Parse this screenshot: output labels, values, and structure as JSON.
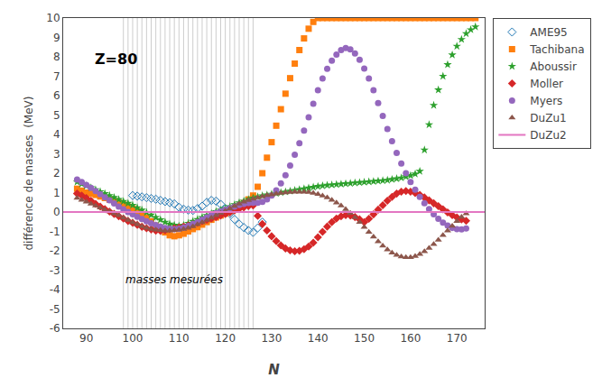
{
  "chart_data": {
    "type": "scatter",
    "title": "Z=80",
    "xlabel": "N",
    "ylabel": "différence de masses  (MeV)",
    "xlim": [
      85,
      176
    ],
    "ylim": [
      -6,
      10
    ],
    "xticks": [
      90,
      100,
      110,
      120,
      130,
      140,
      150,
      160,
      170
    ],
    "yticks": [
      -6,
      -5,
      -4,
      -3,
      -2,
      -1,
      0,
      1,
      2,
      3,
      4,
      5,
      6,
      7,
      8,
      9,
      10
    ],
    "grid": false,
    "legend": "right",
    "vlines": [
      98,
      99,
      100,
      101,
      102,
      103,
      104,
      105,
      106,
      107,
      108,
      109,
      110,
      111,
      112,
      113,
      114,
      115,
      116,
      117,
      118,
      119,
      120,
      121,
      122,
      123,
      124,
      125,
      126
    ],
    "annotations": [
      {
        "text": "masses mesurées",
        "x": 109,
        "y": -3.5
      }
    ],
    "series": [
      {
        "name": "AME95",
        "marker": "diamond-open",
        "x": [
          100,
          101,
          102,
          103,
          104,
          105,
          106,
          107,
          108,
          109,
          110,
          111,
          112,
          113,
          114,
          115,
          116,
          117,
          118,
          119,
          120,
          121,
          122,
          123,
          124,
          125,
          126,
          127,
          128
        ],
        "values": [
          0.85,
          0.82,
          0.78,
          0.74,
          0.7,
          0.66,
          0.6,
          0.54,
          0.48,
          0.42,
          0.25,
          0.15,
          0.1,
          0.08,
          0.18,
          0.3,
          0.5,
          0.6,
          0.56,
          0.4,
          0.18,
          -0.08,
          -0.38,
          -0.62,
          -0.8,
          -0.95,
          -1.05,
          -0.82,
          -0.52
        ]
      },
      {
        "name": "Tachibana",
        "marker": "square",
        "x": [
          88,
          89,
          90,
          91,
          92,
          93,
          94,
          95,
          96,
          97,
          98,
          99,
          100,
          101,
          102,
          103,
          104,
          105,
          106,
          107,
          108,
          109,
          110,
          111,
          112,
          113,
          114,
          115,
          116,
          117,
          118,
          119,
          120,
          121,
          122,
          123,
          124,
          125,
          126,
          127,
          128,
          129,
          130,
          131,
          132,
          133,
          134,
          135,
          136,
          137,
          138,
          139,
          140,
          141,
          142,
          143,
          144,
          145,
          146,
          147,
          148,
          149,
          150,
          151,
          152,
          153,
          154,
          155,
          156,
          157,
          158,
          159,
          160,
          161,
          162,
          163,
          164,
          165,
          166,
          167,
          168,
          169,
          170,
          171,
          172,
          173,
          174
        ],
        "values": [
          1.2,
          1.1,
          1.0,
          0.95,
          0.88,
          0.8,
          0.72,
          0.64,
          0.56,
          0.48,
          0.38,
          0.28,
          0.18,
          0.05,
          -0.1,
          -0.28,
          -0.48,
          -0.7,
          -0.88,
          -1.05,
          -1.2,
          -1.25,
          -1.2,
          -1.12,
          -1.0,
          -0.88,
          -0.78,
          -0.65,
          -0.52,
          -0.4,
          -0.28,
          -0.18,
          -0.08,
          0.05,
          0.18,
          0.32,
          0.46,
          0.65,
          0.85,
          1.3,
          2.0,
          2.8,
          3.6,
          4.45,
          5.3,
          6.1,
          6.9,
          7.65,
          8.35,
          8.95,
          9.45,
          9.8,
          10.0,
          10.0,
          10.0,
          10.0,
          10.0,
          10.0,
          10.0,
          10.0,
          10.0,
          10.0,
          10.0,
          10.0,
          10.0,
          10.0,
          10.0,
          10.0,
          10.0,
          10.0,
          10.0,
          10.0,
          10.0,
          10.0,
          10.0,
          10.0,
          10.0,
          10.0,
          10.0,
          10.0,
          10.0,
          10.0,
          10.0,
          10.0,
          10.0,
          10.0,
          10.0
        ]
      },
      {
        "name": "Aboussir",
        "marker": "star",
        "x": [
          88,
          89,
          90,
          91,
          92,
          93,
          94,
          95,
          96,
          97,
          98,
          99,
          100,
          101,
          102,
          103,
          104,
          105,
          106,
          107,
          108,
          109,
          110,
          111,
          112,
          113,
          114,
          115,
          116,
          117,
          118,
          119,
          120,
          121,
          122,
          123,
          124,
          125,
          126,
          127,
          128,
          129,
          130,
          131,
          132,
          133,
          134,
          135,
          136,
          137,
          138,
          139,
          140,
          141,
          142,
          143,
          144,
          145,
          146,
          147,
          148,
          149,
          150,
          151,
          152,
          153,
          154,
          155,
          156,
          157,
          158,
          159,
          160,
          161,
          162,
          163,
          164,
          165,
          166,
          167,
          168,
          169,
          170,
          171,
          172,
          173,
          174
        ],
        "values": [
          1.55,
          1.45,
          1.35,
          1.25,
          1.15,
          1.05,
          0.95,
          0.85,
          0.75,
          0.65,
          0.55,
          0.45,
          0.35,
          0.22,
          0.1,
          -0.02,
          -0.15,
          -0.28,
          -0.4,
          -0.52,
          -0.62,
          -0.68,
          -0.72,
          -0.68,
          -0.58,
          -0.48,
          -0.38,
          -0.28,
          -0.18,
          -0.08,
          0.02,
          0.1,
          0.18,
          0.28,
          0.38,
          0.48,
          0.56,
          0.65,
          0.72,
          0.78,
          0.84,
          0.88,
          0.92,
          0.96,
          1.0,
          1.04,
          1.08,
          1.12,
          1.16,
          1.2,
          1.24,
          1.28,
          1.32,
          1.35,
          1.38,
          1.4,
          1.42,
          1.44,
          1.46,
          1.48,
          1.5,
          1.52,
          1.54,
          1.56,
          1.58,
          1.6,
          1.62,
          1.64,
          1.68,
          1.72,
          1.76,
          1.82,
          1.88,
          1.96,
          2.1,
          3.2,
          4.5,
          5.5,
          6.3,
          7.0,
          7.6,
          8.1,
          8.55,
          8.9,
          9.2,
          9.4,
          9.55
        ]
      },
      {
        "name": "Moller",
        "marker": "diamond",
        "x": [
          88,
          89,
          90,
          91,
          92,
          93,
          94,
          95,
          96,
          97,
          98,
          99,
          100,
          101,
          102,
          103,
          104,
          105,
          106,
          107,
          108,
          109,
          110,
          111,
          112,
          113,
          114,
          115,
          116,
          117,
          118,
          119,
          120,
          121,
          122,
          123,
          124,
          125,
          126,
          127,
          128,
          129,
          130,
          131,
          132,
          133,
          134,
          135,
          136,
          137,
          138,
          139,
          140,
          141,
          142,
          143,
          144,
          145,
          146,
          147,
          148,
          149,
          150,
          151,
          152,
          153,
          154,
          155,
          156,
          157,
          158,
          159,
          160,
          161,
          162,
          163,
          164,
          165,
          166,
          167,
          168,
          169,
          170,
          171,
          172
        ],
        "values": [
          0.95,
          0.85,
          0.72,
          0.58,
          0.42,
          0.28,
          0.15,
          0.02,
          -0.1,
          -0.22,
          -0.34,
          -0.46,
          -0.56,
          -0.66,
          -0.76,
          -0.84,
          -0.9,
          -0.96,
          -0.98,
          -0.94,
          -0.88,
          -0.84,
          -0.8,
          -0.76,
          -0.7,
          -0.64,
          -0.56,
          -0.48,
          -0.4,
          -0.34,
          -0.26,
          -0.18,
          -0.1,
          -0.02,
          0.08,
          0.16,
          0.24,
          0.3,
          0.34,
          -0.2,
          -0.62,
          -0.95,
          -1.25,
          -1.5,
          -1.72,
          -1.88,
          -1.98,
          -2.02,
          -2.0,
          -1.92,
          -1.78,
          -1.58,
          -1.3,
          -1.02,
          -0.75,
          -0.52,
          -0.34,
          -0.22,
          -0.16,
          -0.18,
          -0.26,
          -0.38,
          -0.52,
          -0.35,
          -0.12,
          0.12,
          0.35,
          0.58,
          0.78,
          0.95,
          1.05,
          1.08,
          1.05,
          0.98,
          0.88,
          0.75,
          0.6,
          0.45,
          0.3,
          0.14,
          -0.02,
          -0.16,
          -0.28,
          -0.38,
          -0.45
        ]
      },
      {
        "name": "Myers",
        "marker": "circle",
        "x": [
          88,
          89,
          90,
          91,
          92,
          93,
          94,
          95,
          96,
          97,
          98,
          99,
          100,
          101,
          102,
          103,
          104,
          105,
          106,
          107,
          108,
          109,
          110,
          111,
          112,
          113,
          114,
          115,
          116,
          117,
          118,
          119,
          120,
          121,
          122,
          123,
          124,
          125,
          126,
          127,
          128,
          129,
          130,
          131,
          132,
          133,
          134,
          135,
          136,
          137,
          138,
          139,
          140,
          141,
          142,
          143,
          144,
          145,
          146,
          147,
          148,
          149,
          150,
          151,
          152,
          153,
          154,
          155,
          156,
          157,
          158,
          159,
          160,
          161,
          162,
          163,
          164,
          165,
          166,
          167,
          168,
          169,
          170,
          171,
          172
        ],
        "values": [
          1.68,
          1.55,
          1.4,
          1.24,
          1.08,
          0.92,
          0.76,
          0.6,
          0.44,
          0.28,
          0.14,
          0.0,
          -0.12,
          -0.24,
          -0.36,
          -0.48,
          -0.58,
          -0.68,
          -0.76,
          -0.82,
          -0.86,
          -0.88,
          -0.86,
          -0.8,
          -0.72,
          -0.62,
          -0.52,
          -0.4,
          -0.28,
          -0.16,
          -0.06,
          0.04,
          0.12,
          0.2,
          0.28,
          0.36,
          0.42,
          0.46,
          0.48,
          0.48,
          0.52,
          0.65,
          0.85,
          1.12,
          1.48,
          1.9,
          2.4,
          2.95,
          3.55,
          4.2,
          4.88,
          5.58,
          6.28,
          6.88,
          7.38,
          7.8,
          8.12,
          8.35,
          8.45,
          8.38,
          8.18,
          7.85,
          7.4,
          6.88,
          6.28,
          5.62,
          4.95,
          4.28,
          3.65,
          3.05,
          2.5,
          2.0,
          1.55,
          1.15,
          0.78,
          0.45,
          0.15,
          -0.12,
          -0.35,
          -0.55,
          -0.7,
          -0.82,
          -0.88,
          -0.9,
          -0.85
        ]
      },
      {
        "name": "DuZu1",
        "marker": "triangle-up",
        "x": [
          88,
          89,
          90,
          91,
          92,
          93,
          94,
          95,
          96,
          97,
          98,
          99,
          100,
          101,
          102,
          103,
          104,
          105,
          106,
          107,
          108,
          109,
          110,
          111,
          112,
          113,
          114,
          115,
          116,
          117,
          118,
          119,
          120,
          121,
          122,
          123,
          124,
          125,
          126,
          127,
          128,
          129,
          130,
          131,
          132,
          133,
          134,
          135,
          136,
          137,
          138,
          139,
          140,
          141,
          142,
          143,
          144,
          145,
          146,
          147,
          148,
          149,
          150,
          151,
          152,
          153,
          154,
          155,
          156,
          157,
          158,
          159,
          160,
          161,
          162,
          163,
          164,
          165,
          166,
          167,
          168,
          169,
          170,
          171,
          172
        ],
        "values": [
          0.72,
          0.62,
          0.52,
          0.42,
          0.32,
          0.22,
          0.12,
          0.02,
          -0.08,
          -0.18,
          -0.3,
          -0.42,
          -0.54,
          -0.64,
          -0.74,
          -0.82,
          -0.88,
          -0.92,
          -0.94,
          -0.96,
          -0.96,
          -0.94,
          -0.92,
          -0.88,
          -0.82,
          -0.74,
          -0.64,
          -0.54,
          -0.42,
          -0.3,
          -0.18,
          -0.06,
          0.06,
          0.18,
          0.3,
          0.42,
          0.52,
          0.6,
          0.68,
          0.74,
          0.8,
          0.86,
          0.9,
          0.94,
          0.98,
          1.0,
          1.02,
          1.04,
          1.04,
          1.04,
          1.02,
          0.98,
          0.92,
          0.84,
          0.74,
          0.62,
          0.48,
          0.32,
          0.14,
          -0.06,
          -0.28,
          -0.52,
          -0.78,
          -1.04,
          -1.28,
          -1.52,
          -1.74,
          -1.94,
          -2.1,
          -2.22,
          -2.3,
          -2.34,
          -2.34,
          -2.28,
          -2.18,
          -2.04,
          -1.86,
          -1.66,
          -1.44,
          -1.2,
          -0.96,
          -0.72,
          -0.48,
          -0.26,
          -0.08
        ]
      },
      {
        "name": "DuZu2",
        "type": "hline",
        "line_style": "solid",
        "y": 0.0
      }
    ]
  }
}
